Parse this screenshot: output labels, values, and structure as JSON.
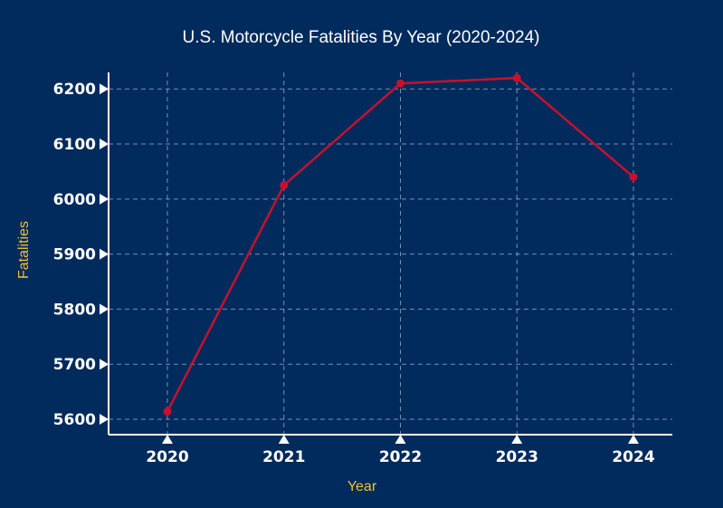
{
  "colors": {
    "background": "#002b5c",
    "line": "#c8102e",
    "axis_label": "#f2c230",
    "text": "#ffffff"
  },
  "chart_data": {
    "type": "line",
    "title": "U.S. Motorcycle Fatalities By Year (2020-2024)",
    "xlabel": "Year",
    "ylabel": "Fatalities",
    "categories": [
      "2020",
      "2021",
      "2022",
      "2023",
      "2024"
    ],
    "series": [
      {
        "values": [
          5614,
          6025,
          6210,
          6220,
          6040
        ]
      }
    ],
    "yticks": [
      5600,
      5700,
      5800,
      5900,
      6000,
      6100,
      6200
    ],
    "ylim": [
      5572,
      6230
    ],
    "grid": true,
    "legend": "none"
  }
}
